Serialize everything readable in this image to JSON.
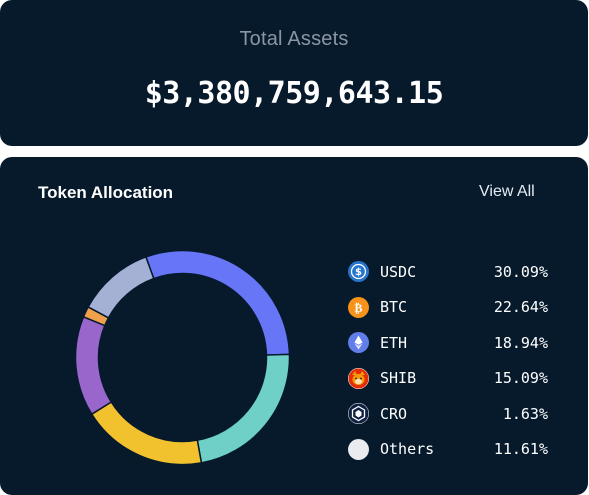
{
  "summary": {
    "label": "Total Assets",
    "value": "$3,380,759,643.15"
  },
  "allocation": {
    "title": "Token Allocation",
    "view_all": "View All",
    "tokens": [
      {
        "symbol": "USDC",
        "percent": "30.09%",
        "value": 30.09,
        "color": "#6676f7",
        "icon": "usdc-icon"
      },
      {
        "symbol": "BTC",
        "percent": "22.64%",
        "value": 22.64,
        "color": "#6ed0c6",
        "icon": "btc-icon"
      },
      {
        "symbol": "ETH",
        "percent": "18.94%",
        "value": 18.94,
        "color": "#f2c12e",
        "icon": "eth-icon"
      },
      {
        "symbol": "SHIB",
        "percent": "15.09%",
        "value": 15.09,
        "color": "#9966cc",
        "icon": "shib-icon"
      },
      {
        "symbol": "CRO",
        "percent": "1.63%",
        "value": 1.63,
        "color": "#f0a04b",
        "icon": "cro-icon"
      },
      {
        "symbol": "Others",
        "percent": "11.61%",
        "value": 11.61,
        "color": "#a4b0d4",
        "icon": "others-icon"
      }
    ]
  }
}
